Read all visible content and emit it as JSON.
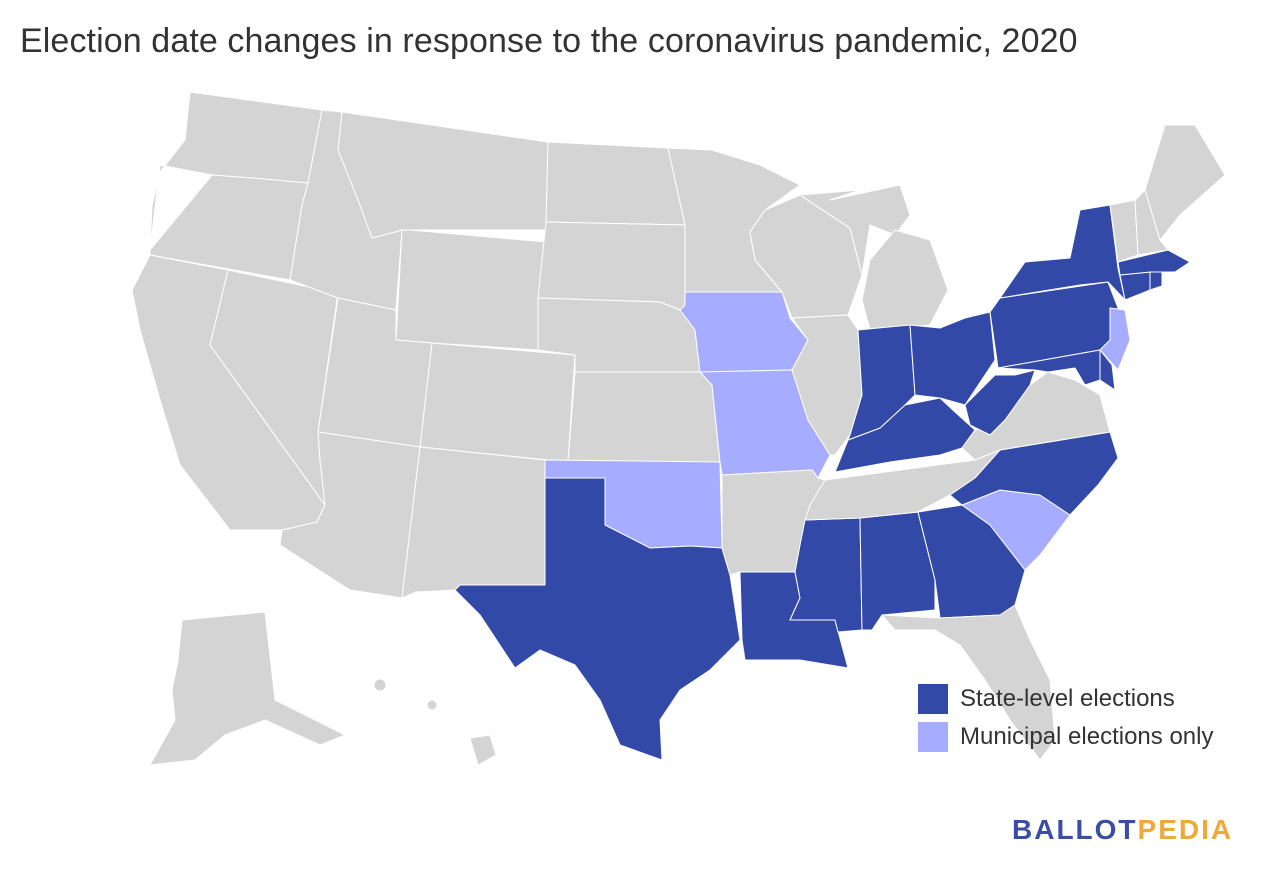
{
  "title": "Election date changes in response to the coronavirus pandemic, 2020",
  "colors": {
    "state_level": "#3349a8",
    "municipal_only": "#a6acff",
    "no_change": "#d4d4d4",
    "border": "#ffffff"
  },
  "legend": [
    {
      "key": "state_level",
      "label": "State-level elections"
    },
    {
      "key": "municipal_only",
      "label": "Municipal elections only"
    }
  ],
  "categories": {
    "state_level": [
      "NY",
      "PA",
      "OH",
      "IN",
      "KY",
      "WV",
      "MD",
      "DE",
      "CT",
      "MA",
      "RI",
      "NC",
      "GA",
      "AL",
      "MS",
      "LA",
      "TX"
    ],
    "municipal_only": [
      "IA",
      "MO",
      "OK",
      "NJ",
      "SC"
    ]
  },
  "logo": {
    "part1": "BALLOT",
    "part2": "PEDIA"
  }
}
